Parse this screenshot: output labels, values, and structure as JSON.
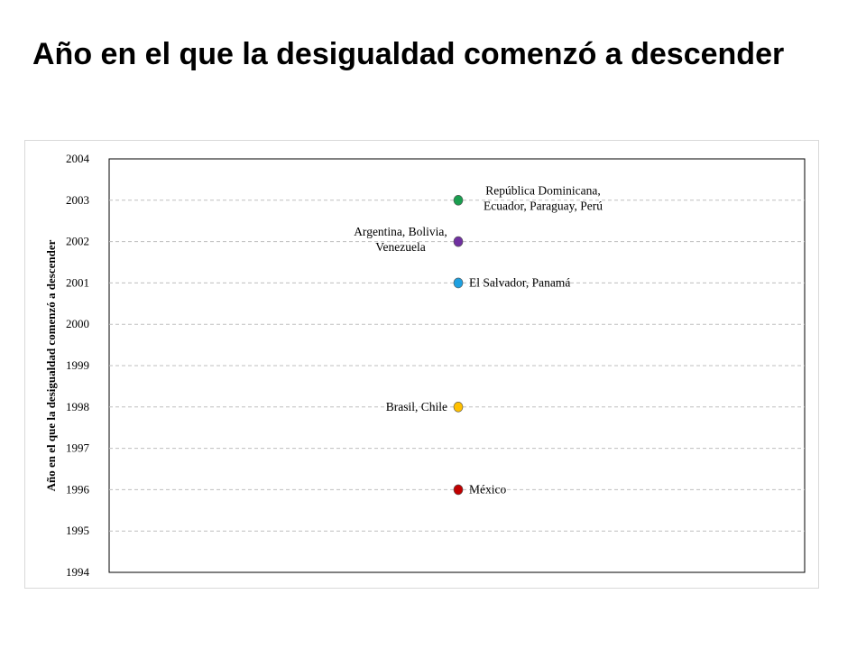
{
  "title": "Año en el que la desigualdad comenzó a descender",
  "chart_data": {
    "type": "scatter",
    "title": "",
    "xlabel": "",
    "ylabel": "Año en el que la desigualdad comenzó a descender",
    "ylim": [
      1994,
      2004
    ],
    "yticks": [
      "2004",
      "2003",
      "2002",
      "2001",
      "2000",
      "1999",
      "1998",
      "1997",
      "1996",
      "1995",
      "1994"
    ],
    "grid": "horizontal dashed",
    "points": [
      {
        "y": 2003,
        "label": [
          "República Dominicana,",
          "Ecuador, Paraguay, Perú"
        ],
        "label_side": "right",
        "color": "#1a9e4f"
      },
      {
        "y": 2002,
        "label": [
          "Argentina, Bolivia,",
          "Venezuela"
        ],
        "label_side": "left",
        "color": "#7030a0"
      },
      {
        "y": 2001,
        "label": [
          "El Salvador, Panamá"
        ],
        "label_side": "right",
        "color": "#1ea0e0"
      },
      {
        "y": 1998,
        "label": [
          "Brasil, Chile"
        ],
        "label_side": "left",
        "color": "#ffc000"
      },
      {
        "y": 1996,
        "label": [
          "México"
        ],
        "label_side": "right",
        "color": "#c00000"
      }
    ]
  }
}
